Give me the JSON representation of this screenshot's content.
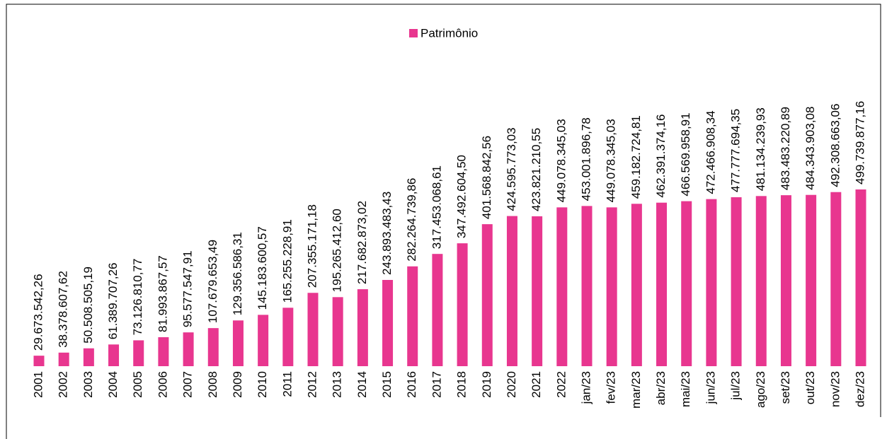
{
  "chart_data": {
    "type": "bar",
    "categories": [
      "2001",
      "2002",
      "2003",
      "2004",
      "2005",
      "2006",
      "2007",
      "2008",
      "2009",
      "2010",
      "2011",
      "2012",
      "2013",
      "2014",
      "2015",
      "2016",
      "2017",
      "2018",
      "2019",
      "2020",
      "2021",
      "2022",
      "jan/23",
      "fev/23",
      "mar/23",
      "abr/23",
      "mai/23",
      "jun/23",
      "jul/23",
      "ago/23",
      "set/23",
      "out/23",
      "nov/23",
      "dez/23"
    ],
    "series": [
      {
        "name": "Patrimônio",
        "color": "#e8368f",
        "values": [
          29673542.26,
          38378607.62,
          50508505.19,
          61389707.26,
          73126810.77,
          81993867.57,
          95577547.91,
          107679653.49,
          129356586.31,
          145183600.57,
          165255228.91,
          207355171.18,
          195265412.6,
          217682873.02,
          243893483.43,
          282264739.86,
          317453068.61,
          347492604.5,
          401568842.56,
          424595773.03,
          423821210.55,
          449078345.03,
          453001896.78,
          449078345.03,
          459182724.81,
          462391374.16,
          466569958.91,
          472466908.34,
          477777694.35,
          481134239.93,
          483483220.89,
          484343903.08,
          492308663.06,
          499739877.16
        ],
        "value_labels": [
          "29.673.542,26",
          "38.378.607,62",
          "50.508.505,19",
          "61.389.707,26",
          "73.126.810,77",
          "81.993.867,57",
          "95.577.547,91",
          "107.679.653,49",
          "129.356.586,31",
          "145.183.600,57",
          "165.255.228,91",
          "207.355.171,18",
          "195.265.412,60",
          "217.682.873,02",
          "243.893.483,43",
          "282.264.739,86",
          "317.453.068,61",
          "347.492.604,50",
          "401.568.842,56",
          "424.595.773,03",
          "423.821.210,55",
          "449.078.345,03",
          "453.001.896,78",
          "449.078.345,03",
          "459.182.724,81",
          "462.391.374,16",
          "466.569.958,91",
          "472.466.908,34",
          "477.777.694,35",
          "481.134.239,93",
          "483.483.220,89",
          "484.343.903,08",
          "492.308.663,06",
          "499.739.877,16"
        ]
      }
    ]
  }
}
